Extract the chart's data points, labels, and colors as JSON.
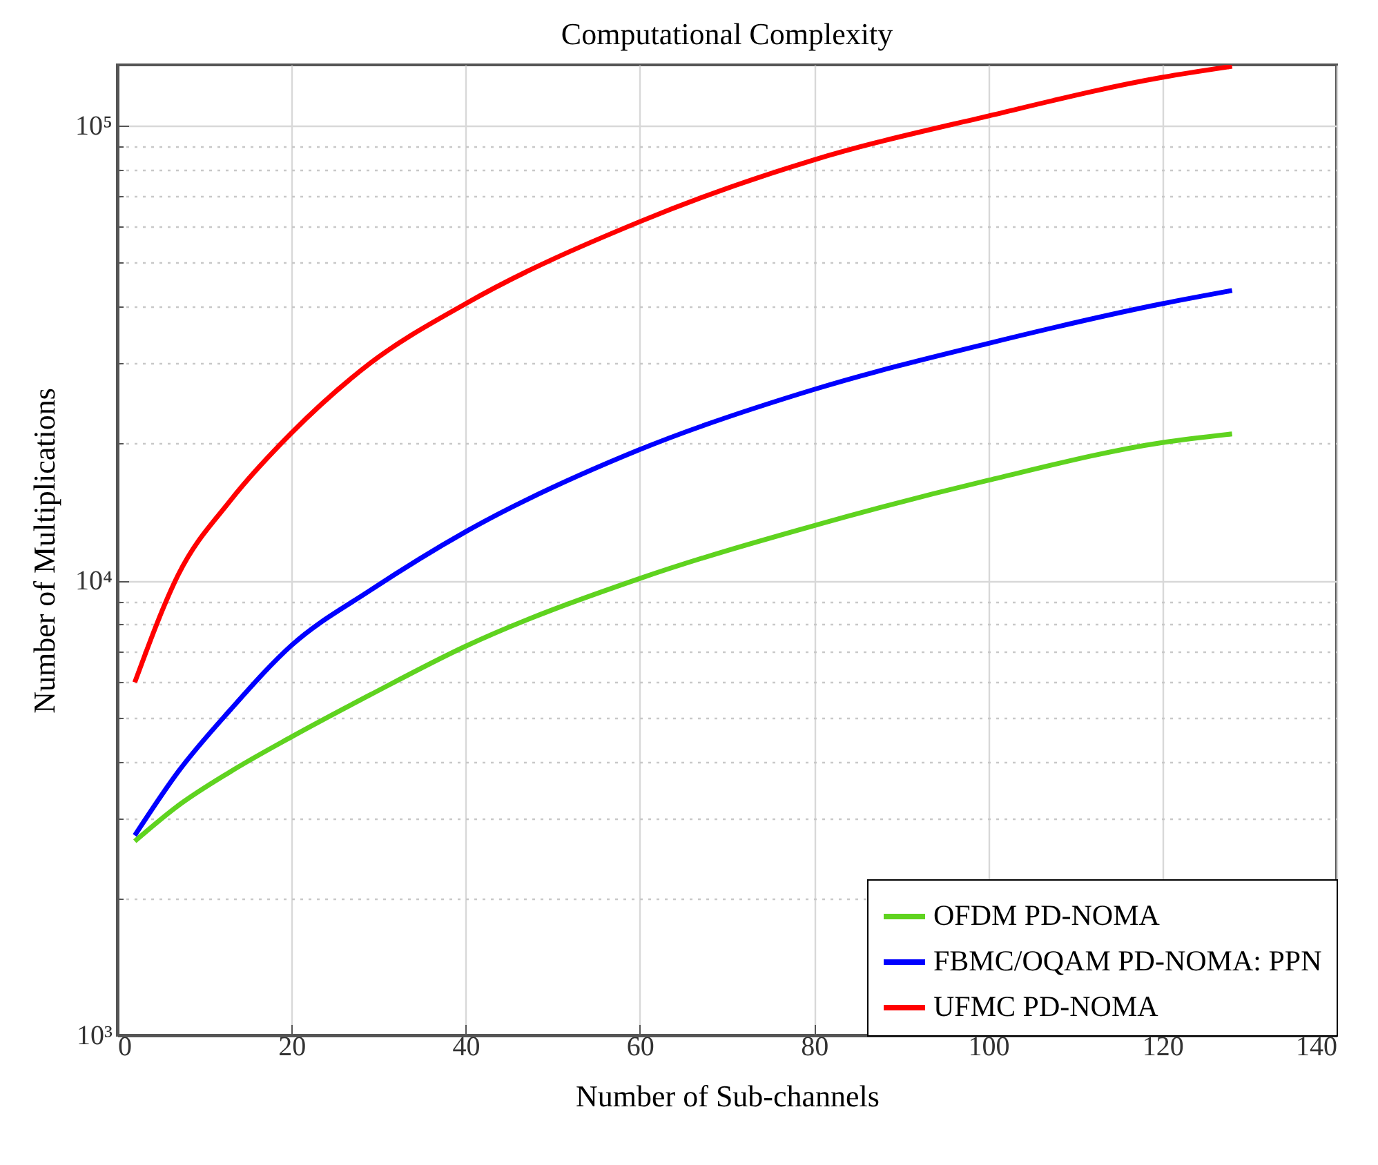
{
  "chart_data": {
    "type": "line",
    "title": "Computational Complexity",
    "xlabel": "Number of Sub-channels",
    "ylabel": "Number of Multiplications",
    "log": "y",
    "grid": true,
    "legend": "bottom right",
    "line_style": "solid",
    "marker": "none",
    "xlim": [
      0,
      140
    ],
    "xticks": [
      0,
      20,
      40,
      60,
      80,
      100,
      120,
      140
    ],
    "ylim": [
      1000,
      136000
    ],
    "yticks": [
      {
        "value": 1000,
        "label": "10³"
      },
      {
        "value": 2000,
        "label": null
      },
      {
        "value": 3000,
        "label": null
      },
      {
        "value": 4000,
        "label": null
      },
      {
        "value": 5000,
        "label": null
      },
      {
        "value": 6000,
        "label": null
      },
      {
        "value": 7000,
        "label": null
      },
      {
        "value": 8000,
        "label": null
      },
      {
        "value": 9000,
        "label": null
      },
      {
        "value": 10000,
        "label": "10⁴"
      },
      {
        "value": 20000,
        "label": null
      },
      {
        "value": 30000,
        "label": null
      },
      {
        "value": 40000,
        "label": null
      },
      {
        "value": 50000,
        "label": null
      },
      {
        "value": 60000,
        "label": null
      },
      {
        "value": 70000,
        "label": null
      },
      {
        "value": 80000,
        "label": null
      },
      {
        "value": 90000,
        "label": null
      },
      {
        "value": 100000,
        "label": "10⁵"
      }
    ],
    "x": [
      2,
      7,
      13,
      20,
      29,
      40,
      60,
      80,
      100,
      120,
      128
    ],
    "series": [
      {
        "name": "OFDM PD-NOMA",
        "color": "#5fd31f",
        "values": [
          2670,
          3200,
          3800,
          4530,
          5600,
          7170,
          10100,
          13200,
          16600,
          20100,
          21000
        ]
      },
      {
        "name": "FBMC/OQAM PD-NOMA: PPN",
        "color": "#0000ff",
        "values": [
          2750,
          3800,
          5200,
          7200,
          9500,
          12800,
          19400,
          26300,
          33200,
          40600,
          43400
        ]
      },
      {
        "name": "UFMC PD-NOMA",
        "color": "#ff0000",
        "values": [
          5970,
          10300,
          15000,
          21100,
          30000,
          40600,
          61500,
          84100,
          105000,
          127700,
          135000
        ]
      }
    ]
  }
}
